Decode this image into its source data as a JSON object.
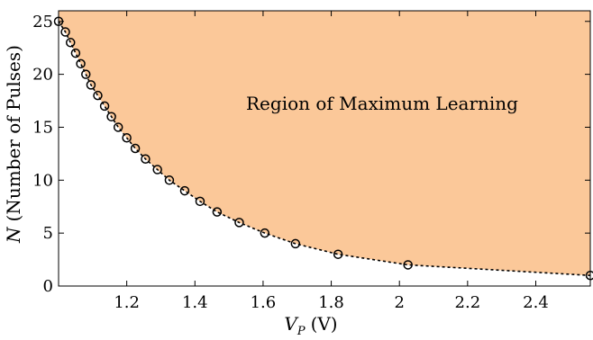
{
  "chart_data": {
    "type": "scatter",
    "x_label_main": "V",
    "x_label_sub": "P",
    "x_label_unit": "(V)",
    "y_label_var": "N",
    "y_label_text": "(Number of Pulses)",
    "annotation": "Region of Maximum Learning",
    "xlim": [
      1.0,
      2.56
    ],
    "ylim": [
      0,
      26
    ],
    "x_ticks": [
      1.2,
      1.4,
      1.6,
      1.8,
      2,
      2.2,
      2.4
    ],
    "x_tick_labels": [
      "1.2",
      "1.4",
      "1.6",
      "1.8",
      "2",
      "2.2",
      "2.4"
    ],
    "y_ticks": [
      0,
      5,
      10,
      15,
      20,
      25
    ],
    "y_tick_labels": [
      "0",
      "5",
      "10",
      "15",
      "20",
      "25"
    ],
    "region_color": "#FBC899",
    "grid": false,
    "series": [
      {
        "x": [
          1.0,
          1.02,
          1.035,
          1.05,
          1.065,
          1.08,
          1.095,
          1.115,
          1.135,
          1.155,
          1.175,
          1.2,
          1.225,
          1.255,
          1.29,
          1.325,
          1.37,
          1.415,
          1.465,
          1.53,
          1.605,
          1.695,
          1.82,
          2.025,
          2.56
        ],
        "y": [
          25,
          24,
          23,
          22,
          21,
          20,
          19,
          18,
          17,
          16,
          15,
          14,
          13,
          12,
          11,
          10,
          9,
          8,
          7,
          6,
          5,
          4,
          3,
          2,
          1
        ]
      }
    ]
  }
}
